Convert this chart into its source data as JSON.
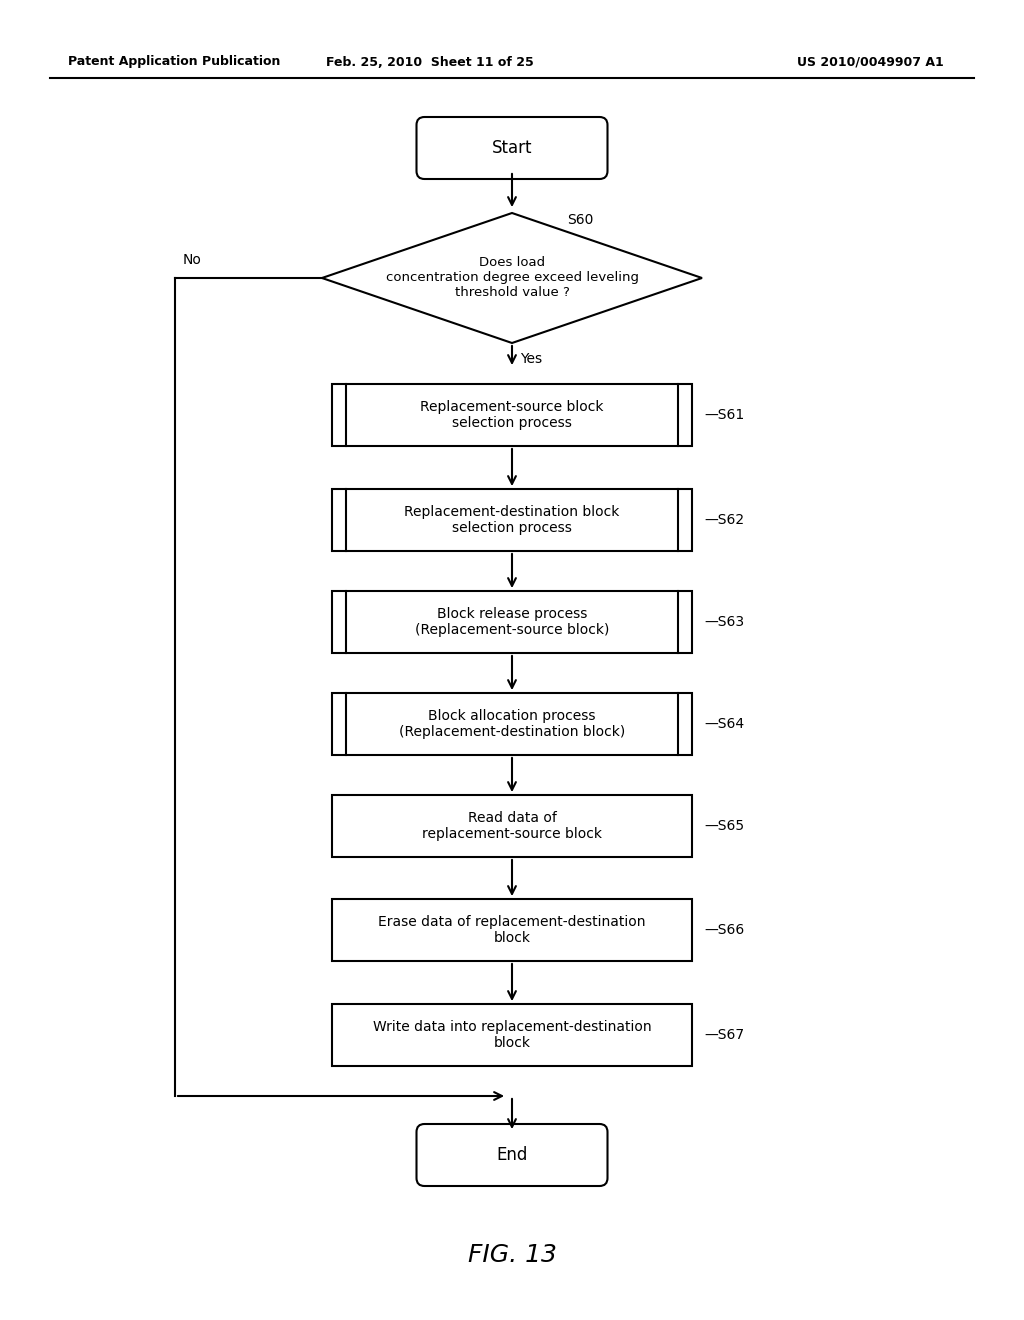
{
  "header_left": "Patent Application Publication",
  "header_center": "Feb. 25, 2010  Sheet 11 of 25",
  "header_right": "US 2010/0049907 A1",
  "figure_label": "FIG. 13",
  "bg_color": "#ffffff",
  "line_color": "#000000",
  "start_text": "Start",
  "end_text": "End",
  "decision_text": "Does load\nconcentration degree exceed leveling\nthreshold value ?",
  "decision_label": "S60",
  "yes_label": "Yes",
  "no_label": "No",
  "boxes": [
    {
      "text": "Replacement-source block\nselection process",
      "label": "S61",
      "has_tabs": true
    },
    {
      "text": "Replacement-destination block\nselection process",
      "label": "S62",
      "has_tabs": true
    },
    {
      "text": "Block release process\n(Replacement-source block)",
      "label": "S63",
      "has_tabs": true
    },
    {
      "text": "Block allocation process\n(Replacement-destination block)",
      "label": "S64",
      "has_tabs": true
    },
    {
      "text": "Read data of\nreplacement-source block",
      "label": "S65",
      "has_tabs": false
    },
    {
      "text": "Erase data of replacement-destination\nblock",
      "label": "S66",
      "has_tabs": false
    },
    {
      "text": "Write data into replacement-destination\nblock",
      "label": "S67",
      "has_tabs": false
    }
  ]
}
